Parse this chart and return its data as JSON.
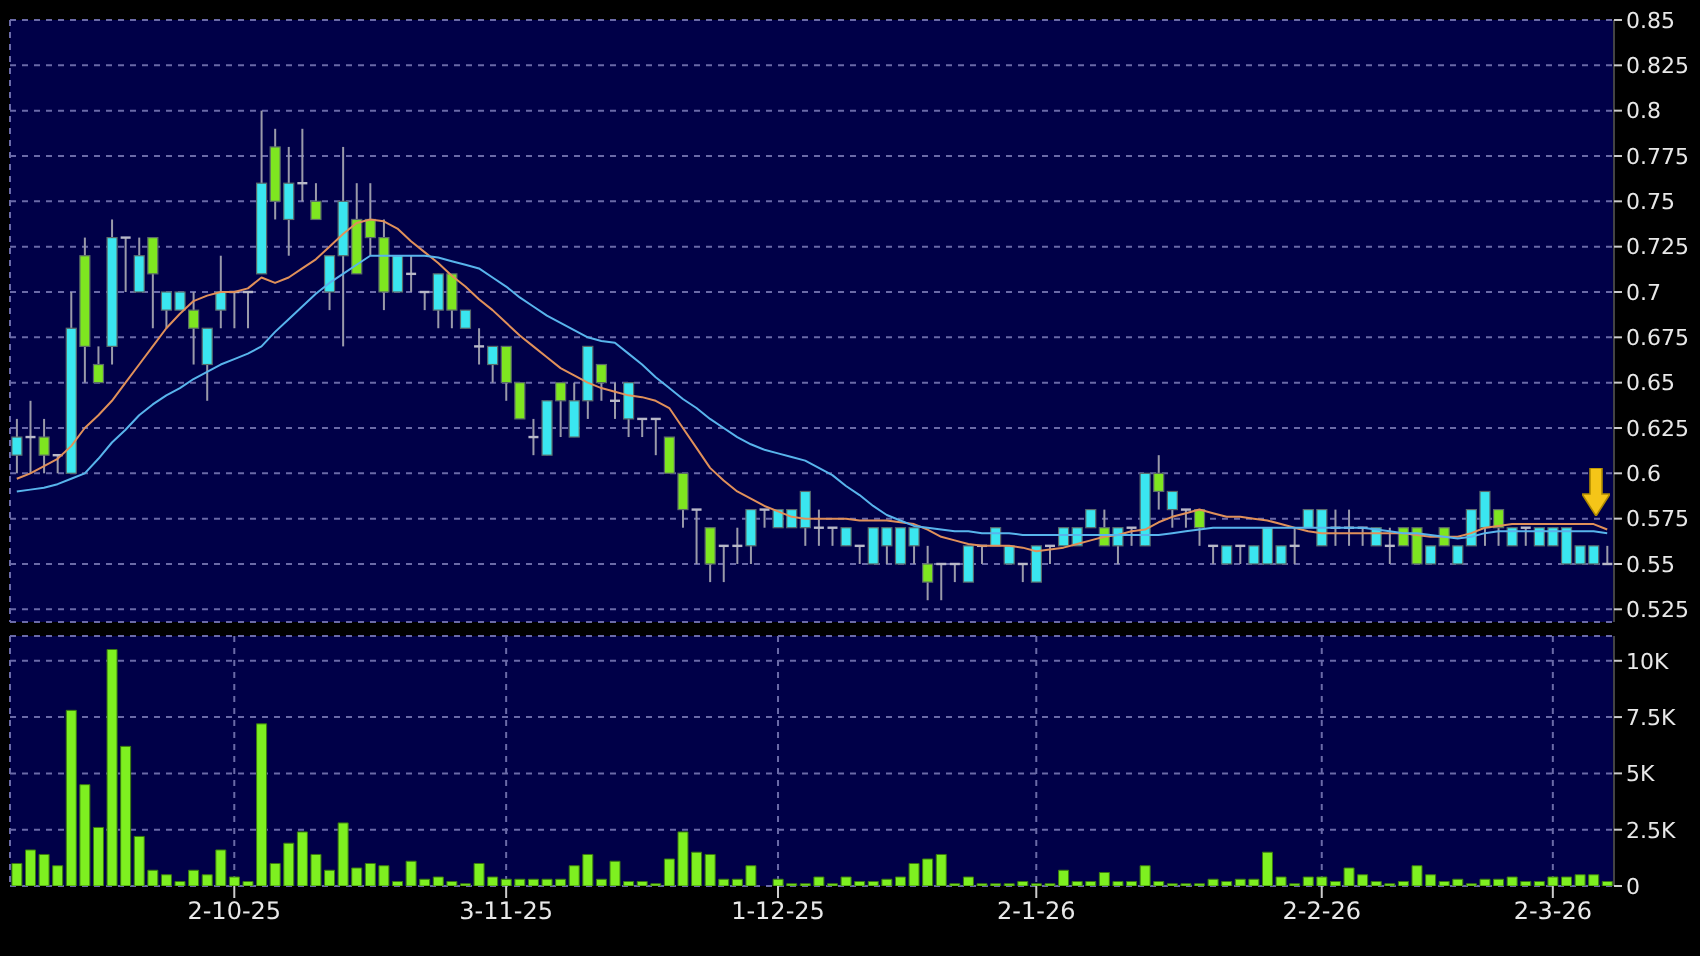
{
  "chart_data": [
    {
      "type": "candlestick",
      "tick_labels": "y",
      "grid": true,
      "ylim": [
        0.518,
        0.85
      ],
      "yticks": [
        0.525,
        0.55,
        0.575,
        0.6,
        0.625,
        0.65,
        0.675,
        0.7,
        0.725,
        0.75,
        0.775,
        0.8,
        0.825,
        0.85
      ],
      "categories": [
        null,
        null,
        null,
        null,
        null,
        null,
        null,
        null,
        null,
        null,
        null,
        null,
        null,
        null,
        null,
        null,
        null,
        null,
        null,
        null,
        null,
        null,
        null,
        null,
        null,
        null,
        null,
        null,
        null,
        null,
        null,
        null,
        null,
        null,
        null,
        null,
        null,
        null,
        null,
        null,
        null,
        null,
        null,
        null,
        null,
        null,
        null,
        null,
        null,
        null,
        null,
        null,
        null,
        null,
        null,
        null,
        null,
        null,
        null,
        null,
        null,
        null,
        null,
        null,
        null,
        null,
        null,
        null,
        null,
        null,
        null,
        null,
        null,
        null,
        null,
        null,
        null,
        null,
        null,
        null,
        null,
        null,
        null,
        null,
        null,
        null,
        null,
        null,
        null,
        null,
        null,
        null,
        null,
        null,
        null,
        null,
        null,
        null,
        null,
        null,
        null,
        null,
        null,
        null,
        null,
        null,
        null,
        null,
        null,
        null,
        null,
        null,
        null,
        null,
        null,
        null,
        null,
        null
      ],
      "ohlc": [
        [
          0.61,
          0.63,
          0.6,
          0.62
        ],
        [
          0.62,
          0.64,
          0.6,
          0.62
        ],
        [
          0.62,
          0.63,
          0.6,
          0.61
        ],
        [
          0.61,
          0.61,
          0.6,
          0.61
        ],
        [
          0.6,
          0.7,
          0.6,
          0.68
        ],
        [
          0.72,
          0.73,
          0.65,
          0.67
        ],
        [
          0.66,
          0.67,
          0.65,
          0.65
        ],
        [
          0.67,
          0.74,
          0.66,
          0.73
        ],
        [
          0.73,
          0.73,
          0.7,
          0.73
        ],
        [
          0.7,
          0.73,
          0.7,
          0.72
        ],
        [
          0.73,
          0.73,
          0.68,
          0.71
        ],
        [
          0.69,
          0.7,
          0.68,
          0.7
        ],
        [
          0.69,
          0.7,
          0.69,
          0.7
        ],
        [
          0.69,
          0.7,
          0.66,
          0.68
        ],
        [
          0.66,
          0.68,
          0.64,
          0.68
        ],
        [
          0.69,
          0.72,
          0.68,
          0.7
        ],
        [
          0.7,
          0.7,
          0.68,
          0.7
        ],
        [
          0.7,
          0.7,
          0.68,
          0.7
        ],
        [
          0.71,
          0.8,
          0.71,
          0.76
        ],
        [
          0.78,
          0.79,
          0.74,
          0.75
        ],
        [
          0.74,
          0.78,
          0.72,
          0.76
        ],
        [
          0.76,
          0.79,
          0.75,
          0.76
        ],
        [
          0.75,
          0.76,
          0.74,
          0.74
        ],
        [
          0.7,
          0.72,
          0.69,
          0.72
        ],
        [
          0.72,
          0.78,
          0.67,
          0.75
        ],
        [
          0.74,
          0.76,
          0.71,
          0.71
        ],
        [
          0.74,
          0.76,
          0.72,
          0.73
        ],
        [
          0.73,
          0.74,
          0.69,
          0.7
        ],
        [
          0.7,
          0.72,
          0.7,
          0.72
        ],
        [
          0.71,
          0.72,
          0.7,
          0.71
        ],
        [
          0.7,
          0.7,
          0.69,
          0.7
        ],
        [
          0.69,
          0.71,
          0.68,
          0.71
        ],
        [
          0.71,
          0.71,
          0.68,
          0.69
        ],
        [
          0.68,
          0.69,
          0.68,
          0.69
        ],
        [
          0.67,
          0.68,
          0.66,
          0.67
        ],
        [
          0.66,
          0.67,
          0.65,
          0.67
        ],
        [
          0.67,
          0.67,
          0.64,
          0.65
        ],
        [
          0.65,
          0.65,
          0.63,
          0.63
        ],
        [
          0.62,
          0.63,
          0.61,
          0.62
        ],
        [
          0.61,
          0.64,
          0.61,
          0.64
        ],
        [
          0.65,
          0.65,
          0.62,
          0.64
        ],
        [
          0.62,
          0.65,
          0.62,
          0.64
        ],
        [
          0.64,
          0.67,
          0.63,
          0.67
        ],
        [
          0.66,
          0.66,
          0.64,
          0.65
        ],
        [
          0.64,
          0.65,
          0.63,
          0.64
        ],
        [
          0.63,
          0.65,
          0.62,
          0.65
        ],
        [
          0.63,
          0.63,
          0.62,
          0.63
        ],
        [
          0.63,
          0.63,
          0.61,
          0.63
        ],
        [
          0.62,
          0.62,
          0.6,
          0.6
        ],
        [
          0.6,
          0.6,
          0.57,
          0.58
        ],
        [
          0.58,
          0.58,
          0.55,
          0.58
        ],
        [
          0.57,
          0.57,
          0.54,
          0.55
        ],
        [
          0.56,
          0.56,
          0.54,
          0.56
        ],
        [
          0.56,
          0.57,
          0.55,
          0.56
        ],
        [
          0.56,
          0.58,
          0.55,
          0.58
        ],
        [
          0.58,
          0.58,
          0.57,
          0.58
        ],
        [
          0.57,
          0.58,
          0.57,
          0.58
        ],
        [
          0.57,
          0.58,
          0.57,
          0.58
        ],
        [
          0.57,
          0.59,
          0.56,
          0.59
        ],
        [
          0.57,
          0.58,
          0.56,
          0.57
        ],
        [
          0.57,
          0.57,
          0.56,
          0.57
        ],
        [
          0.56,
          0.57,
          0.56,
          0.57
        ],
        [
          0.56,
          0.56,
          0.55,
          0.56
        ],
        [
          0.55,
          0.57,
          0.55,
          0.57
        ],
        [
          0.56,
          0.57,
          0.55,
          0.57
        ],
        [
          0.55,
          0.57,
          0.55,
          0.57
        ],
        [
          0.56,
          0.57,
          0.55,
          0.57
        ],
        [
          0.55,
          0.56,
          0.53,
          0.54
        ],
        [
          0.55,
          0.55,
          0.53,
          0.55
        ],
        [
          0.55,
          0.55,
          0.54,
          0.55
        ],
        [
          0.54,
          0.56,
          0.54,
          0.56
        ],
        [
          0.56,
          0.56,
          0.55,
          0.56
        ],
        [
          0.56,
          0.57,
          0.56,
          0.57
        ],
        [
          0.55,
          0.56,
          0.55,
          0.56
        ],
        [
          0.55,
          0.55,
          0.54,
          0.55
        ],
        [
          0.54,
          0.56,
          0.54,
          0.56
        ],
        [
          0.56,
          0.56,
          0.55,
          0.56
        ],
        [
          0.56,
          0.57,
          0.56,
          0.57
        ],
        [
          0.56,
          0.57,
          0.56,
          0.57
        ],
        [
          0.57,
          0.58,
          0.57,
          0.58
        ],
        [
          0.57,
          0.58,
          0.56,
          0.56
        ],
        [
          0.56,
          0.57,
          0.55,
          0.57
        ],
        [
          0.57,
          0.57,
          0.56,
          0.57
        ],
        [
          0.56,
          0.6,
          0.56,
          0.6
        ],
        [
          0.6,
          0.61,
          0.58,
          0.59
        ],
        [
          0.58,
          0.59,
          0.57,
          0.59
        ],
        [
          0.58,
          0.58,
          0.57,
          0.58
        ],
        [
          0.58,
          0.58,
          0.56,
          0.57
        ],
        [
          0.56,
          0.56,
          0.55,
          0.56
        ],
        [
          0.55,
          0.56,
          0.55,
          0.56
        ],
        [
          0.56,
          0.56,
          0.55,
          0.56
        ],
        [
          0.55,
          0.56,
          0.55,
          0.56
        ],
        [
          0.55,
          0.57,
          0.55,
          0.57
        ],
        [
          0.55,
          0.56,
          0.55,
          0.56
        ],
        [
          0.56,
          0.57,
          0.55,
          0.56
        ],
        [
          0.57,
          0.58,
          0.57,
          0.58
        ],
        [
          0.56,
          0.58,
          0.56,
          0.58
        ],
        [
          0.57,
          0.58,
          0.56,
          0.57
        ],
        [
          0.57,
          0.58,
          0.56,
          0.57
        ],
        [
          0.57,
          0.57,
          0.56,
          0.57
        ],
        [
          0.56,
          0.57,
          0.56,
          0.57
        ],
        [
          0.56,
          0.57,
          0.55,
          0.56
        ],
        [
          0.57,
          0.57,
          0.56,
          0.56
        ],
        [
          0.57,
          0.57,
          0.55,
          0.55
        ],
        [
          0.55,
          0.56,
          0.55,
          0.56
        ],
        [
          0.57,
          0.57,
          0.56,
          0.56
        ],
        [
          0.55,
          0.56,
          0.55,
          0.56
        ],
        [
          0.56,
          0.58,
          0.56,
          0.58
        ],
        [
          0.57,
          0.59,
          0.56,
          0.59
        ],
        [
          0.58,
          0.58,
          0.56,
          0.57
        ],
        [
          0.56,
          0.57,
          0.56,
          0.57
        ],
        [
          0.57,
          0.57,
          0.56,
          0.57
        ],
        [
          0.56,
          0.57,
          0.56,
          0.57
        ],
        [
          0.56,
          0.57,
          0.56,
          0.57
        ],
        [
          0.55,
          0.57,
          0.55,
          0.57
        ],
        [
          0.55,
          0.56,
          0.55,
          0.56
        ],
        [
          0.55,
          0.56,
          0.55,
          0.56
        ],
        [
          0.55,
          0.56,
          0.55,
          0.55
        ]
      ],
      "colors": [
        "#3ae6f0",
        "#b8b8c8",
        "#7ee620",
        "#b8b8c8",
        "#3ae6f0",
        "#7ee620",
        "#7ee620",
        "#3ae6f0",
        "#b8b8c8",
        "#3ae6f0",
        "#7ee620",
        "#3ae6f0",
        "#3ae6f0",
        "#7ee620",
        "#3ae6f0",
        "#3ae6f0",
        "#b8b8c8",
        "#b8b8c8",
        "#3ae6f0",
        "#7ee620",
        "#3ae6f0",
        "#b8b8c8",
        "#7ee620",
        "#3ae6f0",
        "#3ae6f0",
        "#7ee620",
        "#7ee620",
        "#7ee620",
        "#3ae6f0",
        "#b8b8c8",
        "#b8b8c8",
        "#3ae6f0",
        "#7ee620",
        "#3ae6f0",
        "#b8b8c8",
        "#3ae6f0",
        "#7ee620",
        "#7ee620",
        "#b8b8c8",
        "#3ae6f0",
        "#7ee620",
        "#3ae6f0",
        "#3ae6f0",
        "#7ee620",
        "#b8b8c8",
        "#3ae6f0",
        "#b8b8c8",
        "#b8b8c8",
        "#7ee620",
        "#7ee620",
        "#b8b8c8",
        "#7ee620",
        "#b8b8c8",
        "#b8b8c8",
        "#3ae6f0",
        "#b8b8c8",
        "#3ae6f0",
        "#3ae6f0",
        "#3ae6f0",
        "#b8b8c8",
        "#b8b8c8",
        "#3ae6f0",
        "#b8b8c8",
        "#3ae6f0",
        "#3ae6f0",
        "#3ae6f0",
        "#3ae6f0",
        "#7ee620",
        "#b8b8c8",
        "#b8b8c8",
        "#3ae6f0",
        "#b8b8c8",
        "#3ae6f0",
        "#3ae6f0",
        "#b8b8c8",
        "#3ae6f0",
        "#b8b8c8",
        "#3ae6f0",
        "#3ae6f0",
        "#3ae6f0",
        "#7ee620",
        "#3ae6f0",
        "#b8b8c8",
        "#3ae6f0",
        "#7ee620",
        "#3ae6f0",
        "#b8b8c8",
        "#7ee620",
        "#b8b8c8",
        "#3ae6f0",
        "#b8b8c8",
        "#3ae6f0",
        "#3ae6f0",
        "#3ae6f0",
        "#b8b8c8",
        "#3ae6f0",
        "#3ae6f0",
        "#b8b8c8",
        "#b8b8c8",
        "#b8b8c8",
        "#3ae6f0",
        "#b8b8c8",
        "#7ee620",
        "#7ee620",
        "#3ae6f0",
        "#7ee620",
        "#3ae6f0",
        "#3ae6f0",
        "#3ae6f0",
        "#7ee620",
        "#3ae6f0",
        "#b8b8c8",
        "#3ae6f0",
        "#3ae6f0",
        "#3ae6f0",
        "#3ae6f0",
        "#3ae6f0",
        "#b8b8c8"
      ],
      "series": [
        {
          "type": "line",
          "color": "#e0905a",
          "values": [
            0.597,
            0.6,
            0.604,
            0.608,
            0.615,
            0.625,
            0.632,
            0.64,
            0.65,
            0.66,
            0.67,
            0.68,
            0.688,
            0.695,
            0.698,
            0.7,
            0.7,
            0.702,
            0.708,
            0.705,
            0.708,
            0.713,
            0.718,
            0.725,
            0.732,
            0.738,
            0.74,
            0.739,
            0.735,
            0.728,
            0.722,
            0.716,
            0.709,
            0.703,
            0.696,
            0.69,
            0.683,
            0.676,
            0.67,
            0.664,
            0.658,
            0.654,
            0.65,
            0.647,
            0.645,
            0.643,
            0.642,
            0.64,
            0.636,
            0.625,
            0.614,
            0.603,
            0.596,
            0.59,
            0.586,
            0.582,
            0.579,
            0.576,
            0.575,
            0.575,
            0.575,
            0.575,
            0.574,
            0.574,
            0.574,
            0.573,
            0.572,
            0.569,
            0.565,
            0.563,
            0.561,
            0.56,
            0.56,
            0.56,
            0.559,
            0.557,
            0.558,
            0.559,
            0.561,
            0.563,
            0.565,
            0.566,
            0.568,
            0.569,
            0.573,
            0.576,
            0.578,
            0.58,
            0.578,
            0.576,
            0.576,
            0.575,
            0.574,
            0.572,
            0.57,
            0.568,
            0.567,
            0.567,
            0.567,
            0.567,
            0.567,
            0.567,
            0.567,
            0.566,
            0.565,
            0.565,
            0.565,
            0.567,
            0.57,
            0.571,
            0.572,
            0.572,
            0.572,
            0.572,
            0.572,
            0.572,
            0.572,
            0.569
          ]
        },
        {
          "type": "line",
          "color": "#58b4ec",
          "values": [
            0.59,
            0.591,
            0.592,
            0.594,
            0.597,
            0.6,
            0.608,
            0.617,
            0.624,
            0.632,
            0.638,
            0.643,
            0.647,
            0.652,
            0.656,
            0.66,
            0.663,
            0.666,
            0.67,
            0.678,
            0.685,
            0.692,
            0.699,
            0.705,
            0.71,
            0.715,
            0.72,
            0.72,
            0.72,
            0.72,
            0.72,
            0.719,
            0.717,
            0.715,
            0.713,
            0.708,
            0.703,
            0.697,
            0.692,
            0.687,
            0.683,
            0.679,
            0.675,
            0.673,
            0.672,
            0.666,
            0.66,
            0.653,
            0.647,
            0.641,
            0.636,
            0.63,
            0.625,
            0.62,
            0.616,
            0.613,
            0.611,
            0.609,
            0.607,
            0.603,
            0.599,
            0.593,
            0.588,
            0.582,
            0.577,
            0.574,
            0.571,
            0.57,
            0.569,
            0.568,
            0.568,
            0.567,
            0.567,
            0.567,
            0.566,
            0.566,
            0.566,
            0.566,
            0.566,
            0.566,
            0.566,
            0.566,
            0.566,
            0.566,
            0.566,
            0.567,
            0.568,
            0.569,
            0.57,
            0.57,
            0.57,
            0.57,
            0.57,
            0.57,
            0.57,
            0.57,
            0.57,
            0.57,
            0.57,
            0.57,
            0.569,
            0.568,
            0.567,
            0.567,
            0.566,
            0.565,
            0.564,
            0.565,
            0.567,
            0.568,
            0.568,
            0.568,
            0.568,
            0.568,
            0.568,
            0.568,
            0.568,
            0.567
          ]
        }
      ]
    },
    {
      "type": "bar",
      "grid": true,
      "color": "#7ef020",
      "ylim": [
        0,
        11100
      ],
      "yticks": [
        0,
        {
          "value": 2500,
          "label": "2.5K"
        },
        {
          "value": 5000,
          "label": "5K"
        },
        {
          "value": 7500,
          "label": "7.5K"
        },
        {
          "value": 10000,
          "label": "10K"
        }
      ],
      "categories": [
        null,
        null,
        null,
        null,
        null,
        null,
        null,
        null,
        null,
        null,
        null,
        null,
        null,
        null,
        null,
        null,
        "2-10-25",
        null,
        null,
        null,
        null,
        null,
        null,
        null,
        null,
        null,
        null,
        null,
        null,
        null,
        null,
        null,
        null,
        null,
        null,
        null,
        "3-11-25",
        null,
        null,
        null,
        null,
        null,
        null,
        null,
        null,
        null,
        null,
        null,
        null,
        null,
        null,
        null,
        null,
        null,
        null,
        null,
        "1-12-25",
        null,
        null,
        null,
        null,
        null,
        null,
        null,
        null,
        null,
        null,
        null,
        null,
        null,
        null,
        null,
        null,
        null,
        null,
        "2-1-26",
        null,
        null,
        null,
        null,
        null,
        null,
        null,
        null,
        null,
        null,
        null,
        null,
        null,
        null,
        null,
        null,
        null,
        null,
        null,
        null,
        "2-2-26",
        null,
        null,
        null,
        null,
        null,
        null,
        null,
        null,
        null,
        null,
        null,
        null,
        null,
        null,
        null,
        null,
        "2-3-26",
        null,
        null,
        null,
        null
      ],
      "values": [
        1000,
        1600,
        1400,
        900,
        7800,
        4500,
        2600,
        10500,
        6200,
        2200,
        700,
        500,
        200,
        700,
        500,
        1600,
        400,
        200,
        7200,
        1000,
        1900,
        2400,
        1400,
        700,
        2800,
        800,
        1000,
        900,
        200,
        1100,
        300,
        400,
        200,
        100,
        1000,
        400,
        300,
        300,
        300,
        300,
        300,
        900,
        1400,
        300,
        1100,
        200,
        200,
        100,
        1200,
        2400,
        1500,
        1400,
        300,
        300,
        900,
        0,
        300,
        100,
        100,
        400,
        100,
        400,
        200,
        200,
        300,
        400,
        1000,
        1200,
        1400,
        100,
        400,
        100,
        100,
        100,
        200,
        100,
        100,
        700,
        200,
        200,
        600,
        200,
        200,
        900,
        200,
        100,
        100,
        100,
        300,
        200,
        300,
        300,
        1500,
        400,
        100,
        400,
        400,
        200,
        800,
        500,
        200,
        100,
        200,
        900,
        500,
        200,
        300,
        100,
        300,
        300,
        400,
        200,
        200,
        400,
        400,
        500,
        500,
        200
      ]
    }
  ]
}
